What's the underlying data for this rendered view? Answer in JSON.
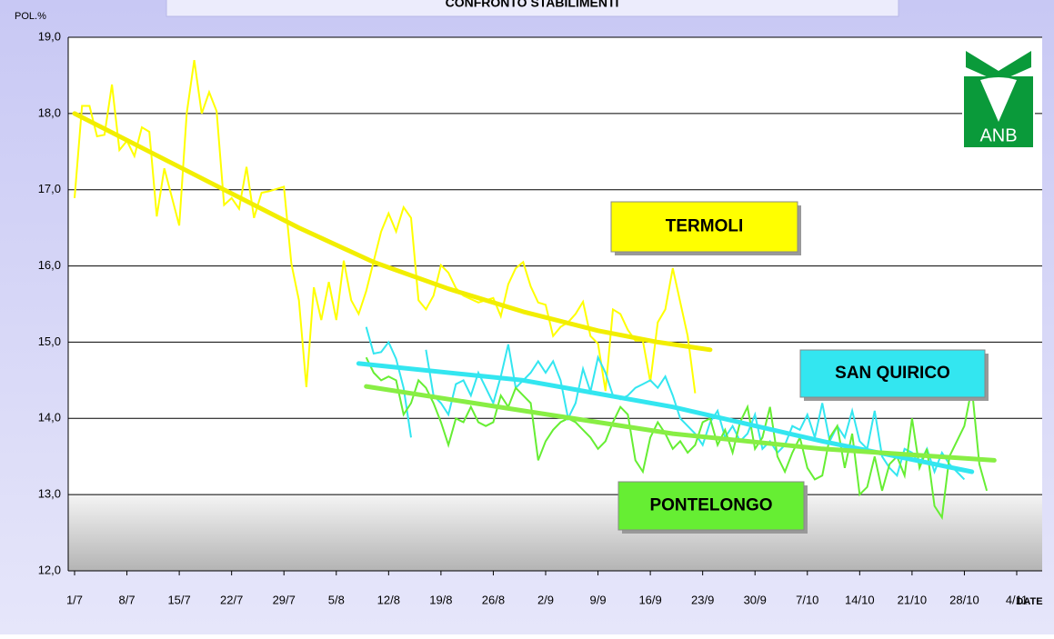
{
  "chart_data": {
    "type": "line",
    "title": "CONFRONTO STABILIMENTI",
    "y_label": "POL.%",
    "x_label": "DATE",
    "logo": "ANB",
    "xlim": [
      0,
      126
    ],
    "ylim": [
      12,
      19
    ],
    "grid": true,
    "shade_band": [
      12,
      13
    ],
    "yticks": [
      {
        "value": 12,
        "label": "12,0"
      },
      {
        "value": 13,
        "label": "13,0"
      },
      {
        "value": 14,
        "label": "14,0"
      },
      {
        "value": 15,
        "label": "15,0"
      },
      {
        "value": 16,
        "label": "16,0"
      },
      {
        "value": 17,
        "label": "17,0"
      },
      {
        "value": 18,
        "label": "18,0"
      },
      {
        "value": 19,
        "label": "19,0"
      }
    ],
    "xticks": [
      {
        "value": 0,
        "label": "1/7"
      },
      {
        "value": 7,
        "label": "8/7"
      },
      {
        "value": 14,
        "label": "15/7"
      },
      {
        "value": 21,
        "label": "22/7"
      },
      {
        "value": 28,
        "label": "29/7"
      },
      {
        "value": 35,
        "label": "5/8"
      },
      {
        "value": 42,
        "label": "12/8"
      },
      {
        "value": 49,
        "label": "19/8"
      },
      {
        "value": 56,
        "label": "26/8"
      },
      {
        "value": 63,
        "label": "2/9"
      },
      {
        "value": 70,
        "label": "9/9"
      },
      {
        "value": 77,
        "label": "16/9"
      },
      {
        "value": 84,
        "label": "23/9"
      },
      {
        "value": 91,
        "label": "30/9"
      },
      {
        "value": 98,
        "label": "7/10"
      },
      {
        "value": 105,
        "label": "14/10"
      },
      {
        "value": 112,
        "label": "21/10"
      },
      {
        "value": 119,
        "label": "28/10"
      },
      {
        "value": 126,
        "label": "4/11"
      }
    ],
    "series": [
      {
        "name": "TERMOLI",
        "color": "#ffff00",
        "trend_color": "#f2ee00",
        "x": [
          0,
          1,
          2,
          3,
          4,
          5,
          6,
          7,
          8,
          9,
          10,
          11,
          12,
          14,
          15,
          16,
          17,
          18,
          19,
          20,
          21,
          22,
          23,
          24,
          25,
          26,
          28,
          29,
          30,
          31,
          32,
          33,
          34,
          35,
          36,
          37,
          38,
          39,
          41,
          42,
          43,
          44,
          45,
          46,
          47,
          48,
          49,
          50,
          51,
          52,
          54,
          56,
          57,
          58,
          59,
          60,
          61,
          62,
          63,
          64,
          65,
          66,
          67,
          68,
          69,
          70,
          71,
          72,
          73,
          74,
          75,
          76,
          77,
          78,
          79,
          80,
          82,
          83
        ],
        "values": [
          16.89,
          18.1,
          18.1,
          17.7,
          17.72,
          18.38,
          17.52,
          17.64,
          17.44,
          17.82,
          17.76,
          16.65,
          17.28,
          16.53,
          18.0,
          18.7,
          18.0,
          18.28,
          18.03,
          16.8,
          16.89,
          16.75,
          17.3,
          16.63,
          16.96,
          16.98,
          17.04,
          16.03,
          15.55,
          14.41,
          15.72,
          15.29,
          15.79,
          15.29,
          16.07,
          15.55,
          15.37,
          15.67,
          16.45,
          16.69,
          16.45,
          16.77,
          16.63,
          15.55,
          15.43,
          15.61,
          16.01,
          15.91,
          15.71,
          15.61,
          15.52,
          15.58,
          15.34,
          15.76,
          15.97,
          16.05,
          15.73,
          15.52,
          15.49,
          15.08,
          15.2,
          15.26,
          15.37,
          15.53,
          15.08,
          14.98,
          14.36,
          15.43,
          15.37,
          15.16,
          15.02,
          15.02,
          14.48,
          15.26,
          15.43,
          15.97,
          15.08,
          14.33
        ],
        "trend": {
          "x": [
            0,
            10,
            20,
            30,
            40,
            50,
            60,
            70,
            78,
            85
          ],
          "values": [
            18.0,
            17.5,
            17.0,
            16.5,
            16.05,
            15.7,
            15.4,
            15.15,
            15.0,
            14.9
          ]
        }
      },
      {
        "name": "SAN QUIRICO",
        "color": "#33e6f0",
        "trend_color": "#33e6f0",
        "x": [
          39,
          40,
          41,
          42,
          43,
          44,
          45,
          46,
          47,
          48,
          49,
          50,
          51,
          52,
          53,
          54,
          55,
          56,
          57,
          58,
          59,
          60,
          61,
          62,
          63,
          64,
          65,
          66,
          67,
          68,
          69,
          70,
          71,
          72,
          73,
          74,
          75,
          76,
          77,
          78,
          79,
          80,
          81,
          82,
          83,
          84,
          85,
          86,
          87,
          88,
          89,
          90,
          91,
          92,
          93,
          94,
          95,
          96,
          97,
          98,
          99,
          100,
          101,
          102,
          103,
          104,
          105,
          106,
          107,
          108,
          109,
          110,
          111,
          112,
          113,
          114,
          115,
          116,
          117,
          118,
          119
        ],
        "values": [
          15.2,
          14.85,
          14.87,
          15.0,
          14.78,
          14.4,
          13.75,
          null,
          14.9,
          14.3,
          14.2,
          14.05,
          14.45,
          14.5,
          14.3,
          14.6,
          14.4,
          14.2,
          14.55,
          14.97,
          14.4,
          14.5,
          14.6,
          14.75,
          14.6,
          14.75,
          14.5,
          14.0,
          14.2,
          14.65,
          14.35,
          14.8,
          14.6,
          14.3,
          14.25,
          14.3,
          14.4,
          14.45,
          14.5,
          14.4,
          14.55,
          14.3,
          14.0,
          13.9,
          13.8,
          13.65,
          13.95,
          14.1,
          13.75,
          13.9,
          13.7,
          13.8,
          14.05,
          13.6,
          13.7,
          13.55,
          13.65,
          13.9,
          13.85,
          14.05,
          13.75,
          14.2,
          13.7,
          13.9,
          13.75,
          14.1,
          13.7,
          13.6,
          14.1,
          13.5,
          13.35,
          13.25,
          13.6,
          13.55,
          13.4,
          13.6,
          13.3,
          13.55,
          13.4,
          13.3,
          13.2
        ],
        "trend": {
          "x": [
            38,
            60,
            80,
            100,
            120
          ],
          "values": [
            14.72,
            14.5,
            14.15,
            13.7,
            13.3
          ]
        }
      },
      {
        "name": "PONTELONGO",
        "color": "#66ee33",
        "trend_color": "#88ee44",
        "x": [
          39,
          40,
          41,
          42,
          43,
          44,
          45,
          46,
          47,
          48,
          49,
          50,
          51,
          52,
          53,
          54,
          55,
          56,
          57,
          58,
          59,
          60,
          61,
          62,
          63,
          64,
          65,
          66,
          67,
          68,
          69,
          70,
          71,
          72,
          73,
          74,
          75,
          76,
          77,
          78,
          79,
          80,
          81,
          82,
          83,
          84,
          85,
          86,
          87,
          88,
          89,
          90,
          91,
          92,
          93,
          94,
          95,
          96,
          97,
          98,
          99,
          100,
          101,
          102,
          103,
          104,
          105,
          106,
          107,
          108,
          109,
          110,
          111,
          112,
          113,
          114,
          115,
          116,
          117,
          119,
          120,
          121,
          122
        ],
        "values": [
          14.8,
          14.6,
          14.5,
          14.55,
          14.5,
          14.05,
          14.2,
          14.5,
          14.4,
          14.2,
          13.95,
          13.65,
          14.0,
          13.95,
          14.15,
          13.95,
          13.9,
          13.95,
          14.3,
          14.15,
          14.4,
          14.3,
          14.2,
          13.45,
          13.7,
          13.85,
          13.95,
          14.0,
          13.95,
          13.85,
          13.75,
          13.6,
          13.7,
          13.95,
          14.15,
          14.05,
          13.45,
          13.3,
          13.75,
          13.95,
          13.8,
          13.6,
          13.7,
          13.55,
          13.65,
          13.95,
          14.0,
          13.65,
          13.85,
          13.55,
          13.95,
          14.15,
          13.6,
          13.75,
          14.15,
          13.5,
          13.3,
          13.55,
          13.75,
          13.35,
          13.2,
          13.25,
          13.75,
          13.9,
          13.35,
          13.8,
          13.0,
          13.1,
          13.5,
          13.05,
          13.4,
          13.5,
          13.25,
          14.0,
          13.35,
          13.6,
          12.85,
          12.7,
          13.5,
          13.9,
          14.4,
          13.4,
          13.05
        ],
        "trend": {
          "x": [
            39,
            60,
            80,
            100,
            123
          ],
          "values": [
            14.42,
            14.1,
            13.8,
            13.6,
            13.45
          ]
        }
      }
    ]
  }
}
